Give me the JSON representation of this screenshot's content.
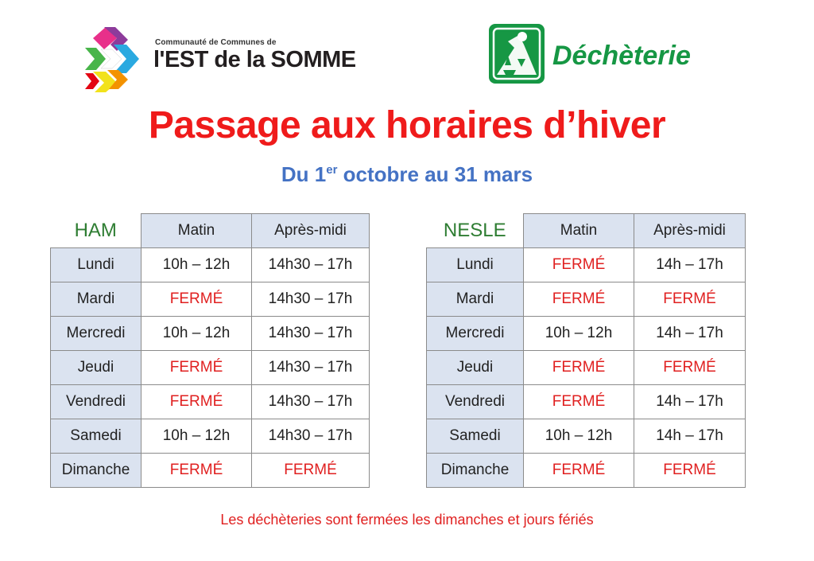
{
  "header": {
    "left_logo": {
      "small_text": "Communauté de Communes de",
      "big_text": "l'EST de la SOMME"
    },
    "right_logo": {
      "text": "Déchèterie",
      "color": "#169744"
    }
  },
  "title": "Passage aux horaires d’hiver",
  "subtitle": {
    "prefix": "Du 1",
    "sup": "er",
    "suffix": " octobre au 31 mars"
  },
  "schedules": {
    "ham": {
      "name": "HAM",
      "headers": [
        "Matin",
        "Après-midi"
      ],
      "rows": [
        {
          "day": "Lundi",
          "matin": "10h – 12h",
          "apres_midi": "14h30 – 17h"
        },
        {
          "day": "Mardi",
          "matin": "FERMÉ",
          "apres_midi": "14h30 – 17h"
        },
        {
          "day": "Mercredi",
          "matin": "10h – 12h",
          "apres_midi": "14h30 – 17h"
        },
        {
          "day": "Jeudi",
          "matin": "FERMÉ",
          "apres_midi": "14h30 – 17h"
        },
        {
          "day": "Vendredi",
          "matin": "FERMÉ",
          "apres_midi": "14h30 – 17h"
        },
        {
          "day": "Samedi",
          "matin": "10h – 12h",
          "apres_midi": "14h30 – 17h"
        },
        {
          "day": "Dimanche",
          "matin": "FERMÉ",
          "apres_midi": "FERMÉ"
        }
      ]
    },
    "nesle": {
      "name": "NESLE",
      "headers": [
        "Matin",
        "Après-midi"
      ],
      "rows": [
        {
          "day": "Lundi",
          "matin": "FERMÉ",
          "apres_midi": "14h – 17h"
        },
        {
          "day": "Mardi",
          "matin": "FERMÉ",
          "apres_midi": "FERMÉ"
        },
        {
          "day": "Mercredi",
          "matin": "10h – 12h",
          "apres_midi": "14h – 17h"
        },
        {
          "day": "Jeudi",
          "matin": "FERMÉ",
          "apres_midi": "FERMÉ"
        },
        {
          "day": "Vendredi",
          "matin": "FERMÉ",
          "apres_midi": "14h – 17h"
        },
        {
          "day": "Samedi",
          "matin": "10h – 12h",
          "apres_midi": "14h – 17h"
        },
        {
          "day": "Dimanche",
          "matin": "FERMÉ",
          "apres_midi": "FERMÉ"
        }
      ]
    }
  },
  "footer": "Les déchèteries sont fermées les dimanches et jours fériés",
  "colors": {
    "title": "#ef1b1b",
    "subtitle": "#4472c4",
    "closed": "#e02020",
    "site_name": "#2e7d32",
    "header_bg": "#dbe3f0"
  }
}
